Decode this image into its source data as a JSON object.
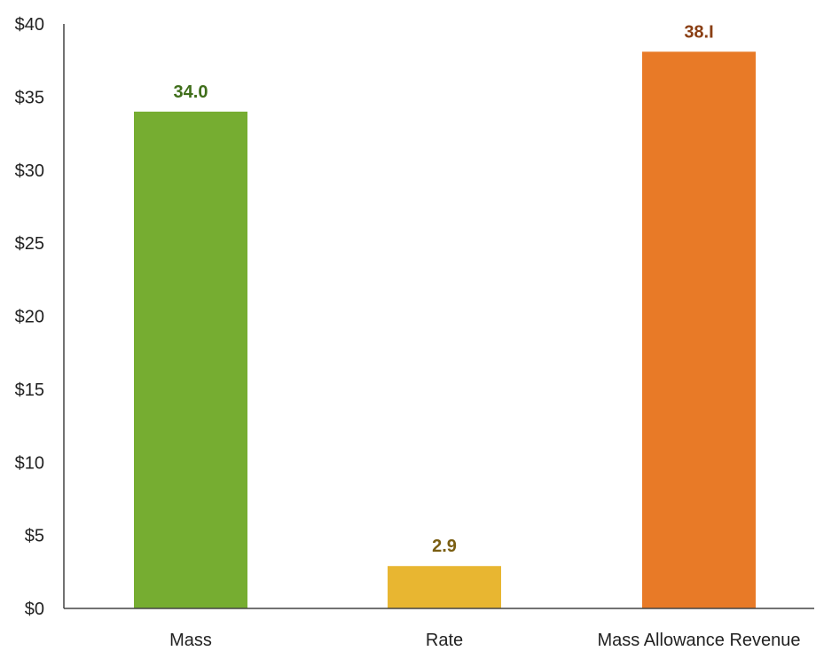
{
  "chart_data": {
    "type": "bar",
    "categories": [
      "Mass",
      "Rate",
      "Mass Allowance Revenue"
    ],
    "values": [
      34.0,
      2.9,
      38.1
    ],
    "value_labels": [
      "34.0",
      "2.9",
      "38.I"
    ],
    "bar_colors": [
      "#76AD31",
      "#E8B631",
      "#E87A27"
    ],
    "label_colors": [
      "#3F6E1A",
      "#7A5E12",
      "#8A3F14"
    ],
    "ylim": [
      0,
      40
    ],
    "yticks": [
      0,
      5,
      10,
      15,
      20,
      25,
      30,
      35,
      40
    ],
    "ytick_labels": [
      "$0",
      "$5",
      "$10",
      "$15",
      "$20",
      "$25",
      "$30",
      "$35",
      "$40"
    ],
    "grid": false,
    "legend": "none"
  }
}
